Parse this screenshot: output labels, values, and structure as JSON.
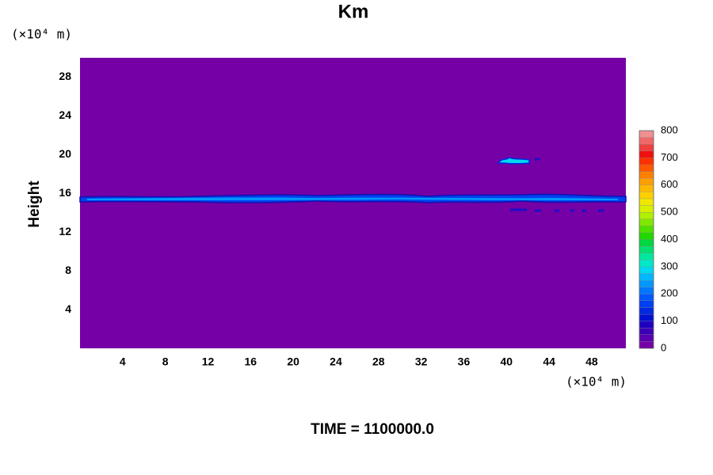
{
  "chart_data": {
    "type": "contour",
    "title": "Km",
    "y_label": "Height",
    "y_unit": "(×10⁴ m)",
    "x_unit": "(×10⁴ m)",
    "footer": "TIME = 1100000.0",
    "xlim": [
      0,
      51.2
    ],
    "xticks": [
      4,
      8,
      12,
      16,
      20,
      24,
      28,
      32,
      36,
      40,
      44,
      48
    ],
    "ylim": [
      0,
      30
    ],
    "yticks": [
      4,
      8,
      12,
      16,
      20,
      24,
      28
    ],
    "clim": [
      0,
      800
    ],
    "cticks": [
      0,
      100,
      200,
      300,
      400,
      500,
      600,
      700,
      800
    ],
    "background_color": "#7400a6",
    "colors": [
      "#7400a6",
      "#5a00b0",
      "#3c00b8",
      "#2000c0",
      "#0010d0",
      "#0028e0",
      "#0040f0",
      "#0058ff",
      "#0078ff",
      "#0098ff",
      "#00b8ff",
      "#00d8f0",
      "#00e8c8",
      "#00e8a0",
      "#00e070",
      "#00d840",
      "#20d800",
      "#50e000",
      "#80e800",
      "#b0f000",
      "#d8f000",
      "#f0e800",
      "#ffd000",
      "#ffb800",
      "#ffa000",
      "#ff8000",
      "#ff5800",
      "#ff3000",
      "#f01010",
      "#f04040",
      "#f06868",
      "#f09090"
    ]
  }
}
